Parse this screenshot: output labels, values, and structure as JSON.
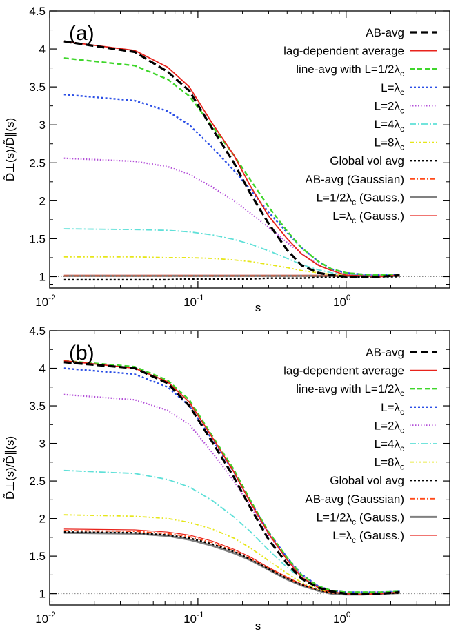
{
  "figure": {
    "shared": {
      "xlabel": "s",
      "ylabel": "D̃⊥(s)/D̃∥(s)",
      "xscale": "log",
      "xlim": [
        0.01,
        5
      ],
      "ylim": [
        0.85,
        4.5
      ],
      "x_ticks": [
        {
          "value": 0.01,
          "base": "10",
          "exp": "-2"
        },
        {
          "value": 0.1,
          "base": "10",
          "exp": "-1"
        },
        {
          "value": 1,
          "base": "10",
          "exp": "0"
        }
      ],
      "y_ticks": [
        "1",
        "1.5",
        "2",
        "2.5",
        "3",
        "3.5",
        "4",
        "4.5"
      ],
      "reference_line": 1,
      "legend_position": "top-right",
      "legend": [
        {
          "label": "AB-avg",
          "color": "#000000",
          "dash": "11,5",
          "width": 3.2
        },
        {
          "label": "lag-dependent average",
          "color": "#e8231c",
          "dash": "",
          "width": 1.8
        },
        {
          "label": "line-avg with L=1/2λc",
          "color": "#3fd62b",
          "dash": "7,4",
          "width": 2.4
        },
        {
          "label": "L=λc",
          "color": "#2b4fe6",
          "dash": "3,3",
          "width": 2.4
        },
        {
          "label": "L=2λc",
          "color": "#b34fd8",
          "dash": "1.5,2.5",
          "width": 2.2
        },
        {
          "label": "L=4λc",
          "color": "#5fe0d8",
          "dash": "9,3,2,3",
          "width": 1.8
        },
        {
          "label": "L=8λc",
          "color": "#e6e619",
          "dash": "6,3,2,3,2,3",
          "width": 1.8
        },
        {
          "label": "Global vol avg",
          "color": "#000000",
          "dash": "3,3",
          "width": 2.4
        },
        {
          "label": "AB-avg (Gaussian)",
          "color": "#ff4a1a",
          "dash": "7,3,2,3",
          "width": 1.8
        },
        {
          "label": "L=1/2λc (Gauss.)",
          "color": "#808080",
          "dash": "",
          "width": 3.0
        },
        {
          "label": "L=λc (Gauss.)",
          "color": "#e8231c",
          "dash": "",
          "width": 1.2
        }
      ]
    }
  },
  "chart_data": [
    {
      "type": "line",
      "panel_label": "(a)",
      "xlabel": "s",
      "ylabel": "D̃⊥(s)/D̃∥(s)",
      "x": [
        0.0125,
        0.0375,
        0.0625,
        0.0875,
        0.125,
        0.175,
        0.225,
        0.3,
        0.4,
        0.5,
        0.65,
        0.8,
        1.0,
        1.3,
        1.7,
        2.3
      ],
      "ylim": [
        0.85,
        4.5
      ],
      "series": [
        {
          "name": "AB-avg",
          "values": [
            4.1,
            3.96,
            3.7,
            3.45,
            2.95,
            2.5,
            2.1,
            1.7,
            1.35,
            1.15,
            1.05,
            1.02,
            1.0,
            1.0,
            1.0,
            1.02
          ]
        },
        {
          "name": "lag-dependent average",
          "values": [
            4.1,
            3.98,
            3.76,
            3.5,
            3.02,
            2.6,
            2.2,
            1.8,
            1.5,
            1.3,
            1.15,
            1.08,
            1.02,
            1.01,
            1.0,
            1.02
          ]
        },
        {
          "name": "line-avg with L=1/2λc",
          "values": [
            3.88,
            3.78,
            3.6,
            3.38,
            2.98,
            2.6,
            2.28,
            1.92,
            1.6,
            1.38,
            1.2,
            1.1,
            1.05,
            1.03,
            1.02,
            1.03
          ]
        },
        {
          "name": "L=λc",
          "values": [
            3.4,
            3.32,
            3.18,
            3.0,
            2.7,
            2.4,
            2.15,
            1.85,
            1.58,
            1.38,
            1.2,
            1.1,
            1.05,
            1.03,
            1.02,
            1.03
          ]
        },
        {
          "name": "L=2λc",
          "values": [
            2.56,
            2.52,
            2.45,
            2.35,
            2.18,
            2.0,
            1.84,
            1.65,
            1.45,
            1.3,
            1.16,
            1.08,
            1.04,
            1.02,
            1.02,
            1.03
          ]
        },
        {
          "name": "L=4λc",
          "values": [
            1.63,
            1.62,
            1.61,
            1.59,
            1.55,
            1.49,
            1.43,
            1.34,
            1.24,
            1.16,
            1.09,
            1.05,
            1.03,
            1.02,
            1.02,
            1.03
          ]
        },
        {
          "name": "L=8λc",
          "values": [
            1.26,
            1.26,
            1.25,
            1.25,
            1.24,
            1.22,
            1.2,
            1.16,
            1.12,
            1.08,
            1.05,
            1.03,
            1.02,
            1.02,
            1.01,
            1.02
          ]
        },
        {
          "name": "Global vol avg",
          "values": [
            0.96,
            0.96,
            0.96,
            0.97,
            0.97,
            0.97,
            0.97,
            0.98,
            0.98,
            0.98,
            0.99,
            0.99,
            0.99,
            1.0,
            1.0,
            1.0
          ]
        },
        {
          "name": "AB-avg (Gaussian)",
          "values": [
            1.01,
            1.01,
            1.01,
            1.01,
            1.01,
            1.01,
            1.01,
            1.01,
            1.01,
            1.01,
            1.01,
            1.01,
            1.01,
            1.01,
            1.01,
            1.01
          ]
        },
        {
          "name": "L=1/2λc (Gauss.)",
          "values": [
            1.01,
            1.01,
            1.01,
            1.01,
            1.01,
            1.01,
            1.01,
            1.01,
            1.01,
            1.01,
            1.01,
            1.01,
            1.01,
            1.01,
            1.01,
            1.01
          ]
        },
        {
          "name": "L=λc (Gauss.)",
          "values": [
            1.02,
            1.02,
            1.02,
            1.02,
            1.02,
            1.02,
            1.02,
            1.02,
            1.02,
            1.02,
            1.02,
            1.02,
            1.02,
            1.02,
            1.02,
            1.02
          ]
        }
      ]
    },
    {
      "type": "line",
      "panel_label": "(b)",
      "xlabel": "s",
      "ylabel": "D̃⊥(s)/D̃∥(s)",
      "x": [
        0.0125,
        0.0375,
        0.0625,
        0.0875,
        0.125,
        0.175,
        0.225,
        0.3,
        0.4,
        0.5,
        0.65,
        0.8,
        1.0,
        1.3,
        1.7,
        2.3
      ],
      "ylim": [
        0.85,
        4.5
      ],
      "series": [
        {
          "name": "AB-avg",
          "values": [
            4.08,
            4.0,
            3.8,
            3.5,
            3.02,
            2.55,
            2.15,
            1.72,
            1.4,
            1.2,
            1.08,
            1.03,
            1.0,
            1.0,
            1.0,
            1.02
          ]
        },
        {
          "name": "lag-dependent average",
          "values": [
            4.1,
            4.0,
            3.82,
            3.55,
            3.08,
            2.62,
            2.22,
            1.8,
            1.45,
            1.22,
            1.08,
            1.02,
            1.0,
            0.99,
            1.0,
            1.02
          ]
        },
        {
          "name": "line-avg with L=1/2λc",
          "values": [
            4.1,
            4.02,
            3.84,
            3.58,
            3.1,
            2.65,
            2.25,
            1.82,
            1.48,
            1.25,
            1.1,
            1.04,
            1.02,
            1.02,
            1.02,
            1.03
          ]
        },
        {
          "name": "L=λc",
          "values": [
            4.0,
            3.92,
            3.75,
            3.5,
            3.05,
            2.62,
            2.23,
            1.82,
            1.48,
            1.26,
            1.1,
            1.04,
            1.02,
            1.02,
            1.02,
            1.03
          ]
        },
        {
          "name": "L=2λc",
          "values": [
            3.65,
            3.58,
            3.44,
            3.25,
            2.88,
            2.5,
            2.17,
            1.78,
            1.46,
            1.25,
            1.1,
            1.04,
            1.02,
            1.02,
            1.02,
            1.03
          ]
        },
        {
          "name": "L=4λc",
          "values": [
            2.64,
            2.6,
            2.52,
            2.42,
            2.24,
            2.02,
            1.83,
            1.58,
            1.35,
            1.2,
            1.08,
            1.03,
            1.01,
            1.01,
            1.02,
            1.03
          ]
        },
        {
          "name": "L=8λc",
          "values": [
            2.05,
            2.03,
            2.0,
            1.95,
            1.86,
            1.74,
            1.61,
            1.44,
            1.27,
            1.15,
            1.06,
            1.02,
            1.01,
            1.01,
            1.01,
            1.02
          ]
        },
        {
          "name": "Global vol avg",
          "values": [
            1.82,
            1.81,
            1.78,
            1.74,
            1.66,
            1.56,
            1.46,
            1.33,
            1.2,
            1.12,
            1.05,
            1.01,
            1.0,
            1.0,
            1.0,
            1.01
          ]
        },
        {
          "name": "AB-avg (Gaussian)",
          "values": [
            1.84,
            1.83,
            1.8,
            1.76,
            1.68,
            1.57,
            1.47,
            1.34,
            1.21,
            1.12,
            1.05,
            1.01,
            1.0,
            1.0,
            1.0,
            1.01
          ]
        },
        {
          "name": "L=1/2λc (Gauss.)",
          "values": [
            1.81,
            1.8,
            1.77,
            1.72,
            1.64,
            1.54,
            1.45,
            1.32,
            1.19,
            1.11,
            1.04,
            1.0,
            0.99,
            0.99,
            1.0,
            1.01
          ]
        },
        {
          "name": "L=λc (Gauss.)",
          "values": [
            1.86,
            1.85,
            1.82,
            1.78,
            1.7,
            1.59,
            1.49,
            1.35,
            1.22,
            1.13,
            1.05,
            1.01,
            1.0,
            1.0,
            1.0,
            1.01
          ]
        }
      ]
    }
  ]
}
